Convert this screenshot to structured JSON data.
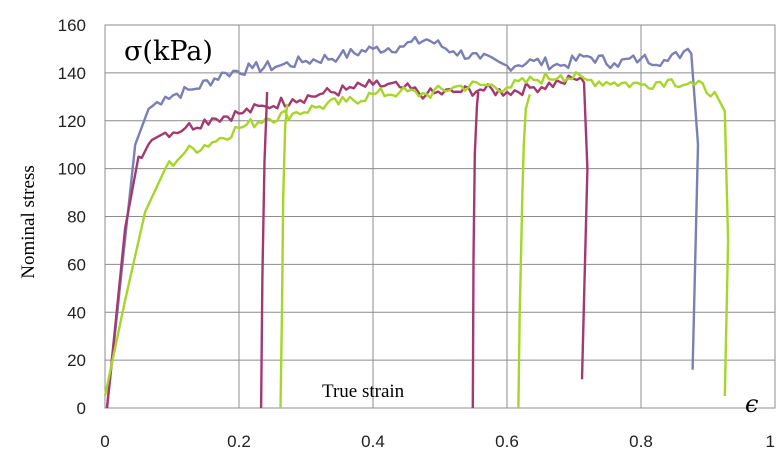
{
  "chart_data": {
    "type": "line",
    "title": "",
    "ylabel": "Nominal stress",
    "xlabel": "True strain",
    "unit_label": "σ(kPa)",
    "x_symbol": "ϵ",
    "xlim": [
      0,
      1
    ],
    "ylim": [
      0,
      160
    ],
    "x_ticks": [
      "0",
      "0.2",
      "0.4",
      "0.6",
      "0.8",
      "1"
    ],
    "y_ticks": [
      "0",
      "20",
      "40",
      "60",
      "80",
      "100",
      "120",
      "140",
      "160"
    ],
    "grid": true,
    "colors": {
      "blue": "#7b7fb4",
      "magenta": "#a33a6f",
      "green": "#a8d52a",
      "grid": "#8c8c8c"
    },
    "series": [
      {
        "color": "#7b7fb4",
        "x": [
          0.003,
          0.045,
          0.065,
          0.09,
          0.13,
          0.18,
          0.22,
          0.26,
          0.3,
          0.35,
          0.4,
          0.44,
          0.48,
          0.52,
          0.56,
          0.6,
          0.64,
          0.68,
          0.72,
          0.76,
          0.8,
          0.84,
          0.87,
          0.875,
          0.885,
          0.877
        ],
        "y": [
          0,
          110,
          125,
          130,
          133,
          140,
          142,
          143,
          145,
          147,
          150,
          151,
          154,
          149,
          146,
          143,
          145,
          143,
          147,
          144,
          146,
          145,
          150,
          148,
          110,
          16
        ]
      },
      {
        "color": "#a33a6f",
        "x": [
          0.003,
          0.03,
          0.05,
          0.07,
          0.09,
          0.12,
          0.16,
          0.2,
          0.24,
          0.28,
          0.32,
          0.36,
          0.4,
          0.44,
          0.48,
          0.52,
          0.56,
          0.6,
          0.64,
          0.68,
          0.71,
          0.715,
          0.72,
          0.712
        ],
        "y": [
          0,
          75,
          105,
          112,
          115,
          117,
          121,
          123,
          126,
          129,
          131,
          133,
          135,
          134,
          131,
          132,
          133,
          132,
          134,
          136,
          138,
          136,
          100,
          12
        ]
      },
      {
        "color": "#a8d52a",
        "x": [
          0.0,
          0.03,
          0.06,
          0.09,
          0.12,
          0.16,
          0.2,
          0.24,
          0.28,
          0.32,
          0.36,
          0.4,
          0.44,
          0.48,
          0.52,
          0.56,
          0.6,
          0.64,
          0.68,
          0.72,
          0.76,
          0.8,
          0.84,
          0.88,
          0.91,
          0.925,
          0.93,
          0.925
        ],
        "y": [
          5,
          45,
          82,
          100,
          107,
          111,
          117,
          121,
          123,
          126,
          128,
          131,
          132,
          131,
          134,
          135,
          134,
          137,
          139,
          137,
          136,
          135,
          137,
          135,
          132,
          124,
          70,
          5
        ]
      },
      {
        "color": "#a33a6f",
        "x": [
          0.233,
          0.235,
          0.238,
          0.241,
          0.242
        ],
        "y": [
          0,
          55,
          103,
          125,
          132
        ]
      },
      {
        "color": "#a8d52a",
        "x": [
          0.262,
          0.264,
          0.266,
          0.269,
          0.272
        ],
        "y": [
          0,
          38,
          88,
          118,
          127
        ]
      },
      {
        "color": "#a33a6f",
        "x": [
          0.549,
          0.55,
          0.552,
          0.555,
          0.557
        ],
        "y": [
          0,
          62,
          106,
          126,
          132
        ]
      },
      {
        "color": "#a8d52a",
        "x": [
          0.617,
          0.619,
          0.621,
          0.623,
          0.625,
          0.628,
          0.634
        ],
        "y": [
          0,
          40,
          65,
          90,
          110,
          125,
          131
        ]
      }
    ]
  }
}
